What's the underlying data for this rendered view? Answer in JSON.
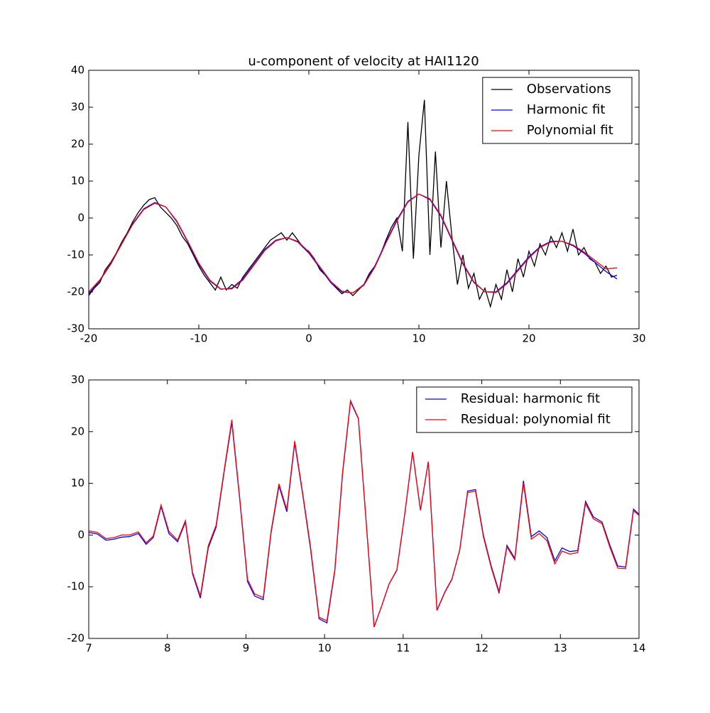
{
  "chart_data": [
    {
      "type": "line",
      "title": "u-component of velocity at HAI1120",
      "xlim": [
        -20,
        30
      ],
      "ylim": [
        -30,
        40
      ],
      "xticks": [
        -20,
        -10,
        0,
        10,
        20,
        30
      ],
      "yticks": [
        -30,
        -20,
        -10,
        0,
        10,
        20,
        30,
        40
      ],
      "legend": "upper right",
      "series": [
        {
          "name": "Observations",
          "color": "#000000",
          "x": [
            -20,
            -19.5,
            -19,
            -18.5,
            -18,
            -17.5,
            -17,
            -16.5,
            -16,
            -15.5,
            -15,
            -14.5,
            -14,
            -13.5,
            -13,
            -12.5,
            -12,
            -11.5,
            -11,
            -10.5,
            -10,
            -9.5,
            -9,
            -8.5,
            -8,
            -7.5,
            -7,
            -6.5,
            -6,
            -5.5,
            -5,
            -4.5,
            -4,
            -3.5,
            -3,
            -2.5,
            -2,
            -1.5,
            -1,
            -0.5,
            0,
            0.5,
            1,
            1.5,
            2,
            2.5,
            3,
            3.5,
            4,
            4.5,
            5,
            5.5,
            6,
            6.5,
            7,
            7.5,
            8,
            8.5,
            9,
            9.5,
            10,
            10.5,
            11,
            11.5,
            12,
            12.5,
            13,
            13.5,
            14,
            14.5,
            15,
            15.5,
            16,
            16.5,
            17,
            17.5,
            18,
            18.5,
            19,
            19.5,
            20,
            20.5,
            21,
            21.5,
            22,
            22.5,
            23,
            23.5,
            24,
            24.5,
            25,
            25.5,
            26,
            26.5,
            27,
            27.5,
            28
          ],
          "values": [
            -21,
            -19,
            -17.5,
            -14,
            -12,
            -9.5,
            -6.5,
            -4,
            -1,
            1.5,
            3.5,
            5,
            5.5,
            3,
            1.5,
            0,
            -2,
            -5,
            -7,
            -10,
            -13,
            -15.5,
            -17.5,
            -19.5,
            -16,
            -19.5,
            -18,
            -19,
            -16,
            -14,
            -12,
            -10,
            -8,
            -6,
            -5,
            -4,
            -6,
            -4,
            -6,
            -8,
            -9,
            -11,
            -14,
            -15.5,
            -17.5,
            -19,
            -20.5,
            -19.5,
            -21,
            -19.5,
            -18,
            -15,
            -13,
            -10,
            -6,
            -2.5,
            0,
            -9,
            26,
            -11,
            17,
            32,
            -10,
            18,
            -8,
            10,
            -5,
            -18,
            -10,
            -19,
            -15,
            -22,
            -19,
            -24,
            -18,
            -22,
            -14,
            -20,
            -11,
            -16,
            -9,
            -13,
            -7,
            -10,
            -5,
            -8,
            -4,
            -9,
            -3,
            -10,
            -8,
            -11,
            -12,
            -15,
            -13,
            -16,
            -15.5
          ]
        },
        {
          "name": "Harmonic fit",
          "color": "#0000ff",
          "x": [
            -20,
            -19,
            -18,
            -17,
            -16,
            -15,
            -14,
            -13,
            -12,
            -11,
            -10,
            -9,
            -8,
            -7,
            -6,
            -5,
            -4,
            -3,
            -2,
            -1,
            0,
            1,
            2,
            3,
            4,
            5,
            6,
            7,
            8,
            9,
            10,
            11,
            12,
            13,
            14,
            15,
            16,
            17,
            18,
            19,
            20,
            21,
            22,
            23,
            24,
            25,
            26,
            27,
            28
          ],
          "values": [
            -20.5,
            -17,
            -12.5,
            -7,
            -1.5,
            2.5,
            4.2,
            3,
            -1,
            -6.5,
            -12.5,
            -17,
            -19.3,
            -19,
            -16.5,
            -12.5,
            -8.5,
            -6,
            -5.3,
            -6.5,
            -9.5,
            -13.5,
            -17.5,
            -20,
            -20.3,
            -18,
            -13,
            -6.5,
            -0.5,
            4.5,
            6.5,
            5,
            0.5,
            -6,
            -12.5,
            -17.5,
            -20,
            -20,
            -17.5,
            -14,
            -10.5,
            -7.8,
            -6.3,
            -6.3,
            -7.5,
            -9.5,
            -12,
            -14.5,
            -16.5
          ]
        },
        {
          "name": "Polynomial fit",
          "color": "#ff0000",
          "x": [
            -20,
            -19,
            -18,
            -17,
            -16,
            -15,
            -14,
            -13,
            -12,
            -11,
            -10,
            -9,
            -8,
            -7,
            -6,
            -5,
            -4,
            -3,
            -2,
            -1,
            0,
            1,
            2,
            3,
            4,
            5,
            6,
            7,
            8,
            9,
            10,
            11,
            12,
            13,
            14,
            15,
            16,
            17,
            18,
            19,
            20,
            21,
            22,
            23,
            24,
            25,
            26,
            27,
            28
          ],
          "values": [
            -20,
            -16.8,
            -12.3,
            -7,
            -1.7,
            2.3,
            4,
            3,
            -0.8,
            -6.3,
            -12.2,
            -16.8,
            -19.2,
            -19.2,
            -16.8,
            -12.8,
            -8.8,
            -6.2,
            -5.3,
            -6.3,
            -9.2,
            -13.2,
            -17.2,
            -19.8,
            -20.3,
            -18.2,
            -13.3,
            -6.8,
            -0.8,
            4.3,
            6.5,
            5.2,
            0.8,
            -5.7,
            -12.2,
            -17.3,
            -20,
            -20.2,
            -17.8,
            -14.3,
            -10.8,
            -8,
            -6.5,
            -6.3,
            -7.3,
            -9.2,
            -11.5,
            -13.8,
            -13.5
          ]
        }
      ]
    },
    {
      "type": "line",
      "xlim": [
        7,
        14
      ],
      "ylim": [
        -20,
        30
      ],
      "xticks": [
        7,
        8,
        9,
        10,
        11,
        12,
        13,
        14
      ],
      "yticks": [
        -20,
        -10,
        0,
        10,
        20,
        30
      ],
      "legend": "upper right",
      "x": [
        7.0,
        7.11,
        7.22,
        7.32,
        7.42,
        7.52,
        7.63,
        7.73,
        7.82,
        7.92,
        8.02,
        8.13,
        8.23,
        8.32,
        8.42,
        8.52,
        8.62,
        8.73,
        8.82,
        8.92,
        9.02,
        9.11,
        9.22,
        9.32,
        9.42,
        9.52,
        9.62,
        9.72,
        9.82,
        9.93,
        10.03,
        10.13,
        10.23,
        10.33,
        10.43,
        10.63,
        10.72,
        10.82,
        10.92,
        11.02,
        11.12,
        11.22,
        11.32,
        11.43,
        11.53,
        11.62,
        11.72,
        11.82,
        11.92,
        12.02,
        12.12,
        12.22,
        12.32,
        12.42,
        12.53,
        12.63,
        12.73,
        12.83,
        12.93,
        13.02,
        13.12,
        13.22,
        13.32,
        13.42,
        13.53,
        13.63,
        13.73,
        13.83,
        13.93,
        14.0
      ],
      "series": [
        {
          "name": "Residual: harmonic fit",
          "color": "#0000ff",
          "values": [
            0.5,
            0.2,
            -1,
            -0.8,
            -0.4,
            -0.3,
            0.3,
            -1.8,
            -0.5,
            5.5,
            0.3,
            -1.3,
            2.5,
            -7.5,
            -12.2,
            -2.5,
            1.5,
            13,
            21.8,
            7,
            -9,
            -11.8,
            -12.5,
            0.5,
            9.5,
            4.5,
            17.8,
            8,
            -2.5,
            -16.2,
            -17,
            -7,
            12,
            25.8,
            22.5,
            -17.8,
            -14,
            -9.5,
            -6.8,
            4,
            16,
            4.8,
            14.2,
            -14.5,
            -11,
            -8.5,
            -2.8,
            8.5,
            8.8,
            0,
            -6,
            -11,
            -2,
            -4.5,
            10.5,
            -0.3,
            0.8,
            -0.5,
            -5,
            -2.5,
            -3.2,
            -3,
            6.5,
            3.5,
            2.5,
            -2,
            -6,
            -6.2,
            5,
            4
          ]
        },
        {
          "name": "Residual: polynomial fit",
          "color": "#ff0000",
          "values": [
            0.8,
            0.5,
            -0.7,
            -0.5,
            0,
            0,
            0.6,
            -1.5,
            -0.2,
            5.8,
            0.7,
            -1,
            2.8,
            -7.2,
            -11.8,
            -2.1,
            1.9,
            13.3,
            22.3,
            7.3,
            -8.6,
            -11.4,
            -12.1,
            0.8,
            9.9,
            4.9,
            18.2,
            8.3,
            -2.1,
            -15.9,
            -16.6,
            -6.7,
            12.3,
            26,
            22.6,
            -17.8,
            -14,
            -9.5,
            -6.7,
            4.1,
            16.1,
            4.8,
            14.2,
            -14.6,
            -11.1,
            -8.6,
            -2.9,
            8.2,
            8.5,
            -0.3,
            -6.3,
            -11.3,
            -2.3,
            -4.8,
            10,
            -0.8,
            0.3,
            -1.1,
            -5.6,
            -3.1,
            -3.7,
            -3.4,
            6.1,
            3.1,
            2.2,
            -2.4,
            -6.4,
            -6.5,
            4.7,
            3.8
          ]
        }
      ]
    }
  ]
}
